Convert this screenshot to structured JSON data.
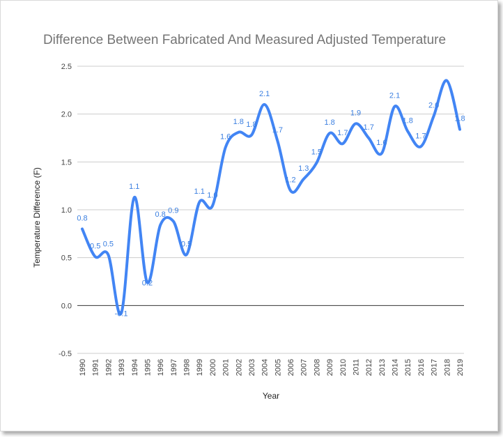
{
  "chart_data": {
    "type": "line",
    "title": "Difference Between Fabricated And Measured Adjusted Temperature",
    "xlabel": "Year",
    "ylabel": "Temperature Difference (F)",
    "ylim": [
      -0.5,
      2.5
    ],
    "yticks": [
      -0.5,
      0.0,
      0.5,
      1.0,
      1.5,
      2.0,
      2.5
    ],
    "ytick_labels": [
      "-0.5",
      "0.0",
      "0.5",
      "1.0",
      "1.5",
      "2.0",
      "2.5"
    ],
    "grid": true,
    "line_color": "#4285f4",
    "label_color": "#3b7fe0",
    "categories": [
      "1990",
      "1991",
      "1992",
      "1993",
      "1994",
      "1995",
      "1996",
      "1997",
      "1998",
      "1999",
      "2000",
      "2001",
      "2002",
      "2003",
      "2004",
      "2005",
      "2006",
      "2007",
      "2008",
      "2009",
      "2010",
      "2011",
      "2012",
      "2013",
      "2014",
      "2015",
      "2016",
      "2017",
      "2018",
      "2019"
    ],
    "series": [
      {
        "name": "Temperature Difference",
        "values": [
          0.8,
          0.51,
          0.53,
          -0.08,
          1.13,
          0.24,
          0.84,
          0.88,
          0.53,
          1.08,
          1.04,
          1.65,
          1.81,
          1.78,
          2.1,
          1.72,
          1.2,
          1.32,
          1.49,
          1.8,
          1.69,
          1.9,
          1.75,
          1.59,
          2.08,
          1.82,
          1.66,
          1.98,
          2.35,
          1.84
        ],
        "labels": [
          "0.8",
          "0.5",
          "0.5",
          "-0.1",
          "1.1",
          "0.2",
          "0.8",
          "0.9",
          "0.5",
          "1.1",
          "1.0",
          "1.6",
          "1.8",
          "1.8",
          "2.1",
          "1.7",
          "1.2",
          "1.3",
          "1.5",
          "1.8",
          "1.7",
          "1.9",
          "1.7",
          "1.6",
          "2.1",
          "1.8",
          "1.7",
          "2.0",
          "",
          "1.8"
        ]
      }
    ]
  }
}
